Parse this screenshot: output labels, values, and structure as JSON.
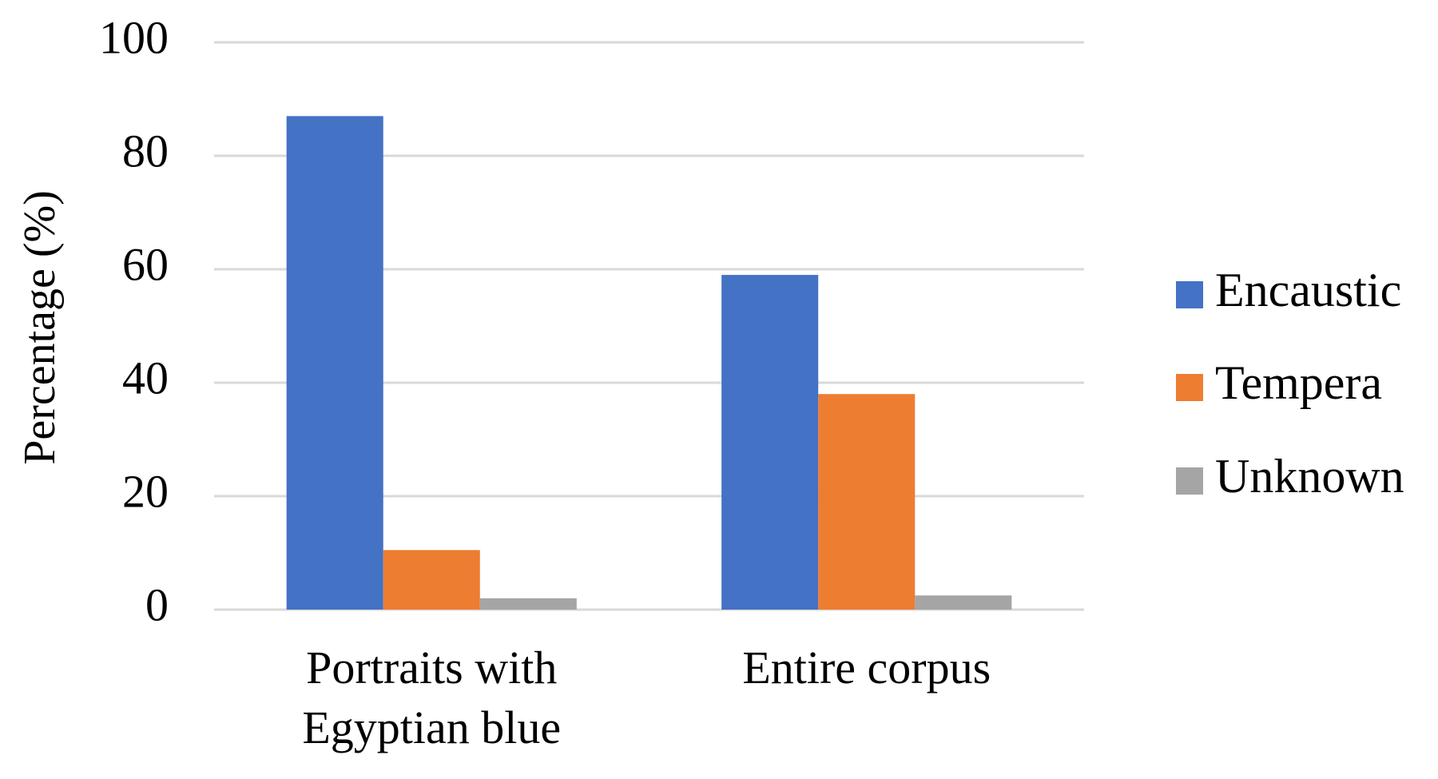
{
  "chart_data": {
    "type": "bar",
    "y_label": "Percentage (%)",
    "categories": [
      "Portraits with Egyptian blue",
      "Entire corpus"
    ],
    "series": [
      {
        "name": "Encaustic",
        "color": "#4472c4",
        "values": [
          87,
          59
        ]
      },
      {
        "name": "Tempera",
        "color": "#ed7d31",
        "values": [
          10.5,
          38
        ]
      },
      {
        "name": "Unknown",
        "color": "#a5a5a5",
        "values": [
          2,
          2.5
        ]
      }
    ],
    "ylim": [
      0,
      100
    ],
    "yticks": [
      0,
      20,
      40,
      60,
      80,
      100
    ],
    "grid": true,
    "legend": "right"
  }
}
